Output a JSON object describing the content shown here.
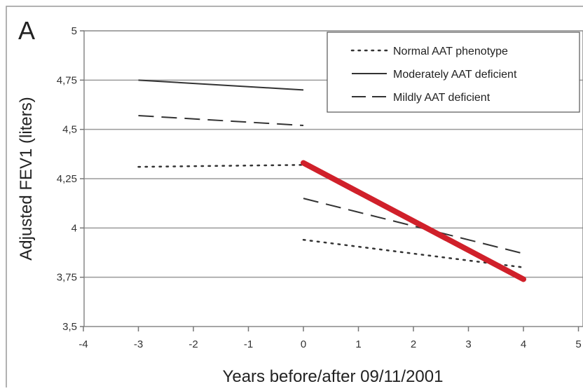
{
  "panel_label": "A",
  "chart_data": {
    "type": "line",
    "xlabel": "Years before/after 09/11/2001",
    "ylabel": "Adjusted FEV1 (liters)",
    "xlim": [
      -4,
      5
    ],
    "ylim": [
      3.5,
      5
    ],
    "x_ticks": [
      {
        "value": -4,
        "label": "-4"
      },
      {
        "value": -3,
        "label": "-3"
      },
      {
        "value": -2,
        "label": "-2"
      },
      {
        "value": -1,
        "label": "-1"
      },
      {
        "value": 0,
        "label": "0"
      },
      {
        "value": 1,
        "label": "1"
      },
      {
        "value": 2,
        "label": "2"
      },
      {
        "value": 3,
        "label": "3"
      },
      {
        "value": 4,
        "label": "4"
      },
      {
        "value": 5,
        "label": "5"
      }
    ],
    "y_ticks": [
      {
        "value": 3.5,
        "label": "3,5"
      },
      {
        "value": 3.75,
        "label": "3,75"
      },
      {
        "value": 4,
        "label": "4"
      },
      {
        "value": 4.25,
        "label": "4,25"
      },
      {
        "value": 4.5,
        "label": "4,5"
      },
      {
        "value": 4.75,
        "label": "4,75"
      },
      {
        "value": 5,
        "label": "5"
      }
    ],
    "grid": "horizontal",
    "legend_position": "top-right",
    "series": [
      {
        "name": "Normal AAT phenotype",
        "style": "dotted",
        "color": "#333333",
        "segments": [
          [
            [
              -3,
              4.31
            ],
            [
              0,
              4.32
            ]
          ],
          [
            [
              0,
              3.94
            ],
            [
              4,
              3.8
            ]
          ]
        ]
      },
      {
        "name": "Moderately AAT deficient",
        "style": "solid",
        "color": "#333333",
        "segments": [
          [
            [
              -3,
              4.75
            ],
            [
              0,
              4.7
            ]
          ]
        ]
      },
      {
        "name": "Mildly AAT deficient",
        "style": "dashed",
        "color": "#333333",
        "segments": [
          [
            [
              -3,
              4.57
            ],
            [
              0,
              4.52
            ]
          ],
          [
            [
              0,
              4.15
            ],
            [
              4,
              3.87
            ]
          ]
        ]
      }
    ],
    "highlight": {
      "color": "#d0202a",
      "segments": [
        [
          [
            0,
            4.33
          ],
          [
            4,
            3.74
          ]
        ]
      ]
    }
  }
}
